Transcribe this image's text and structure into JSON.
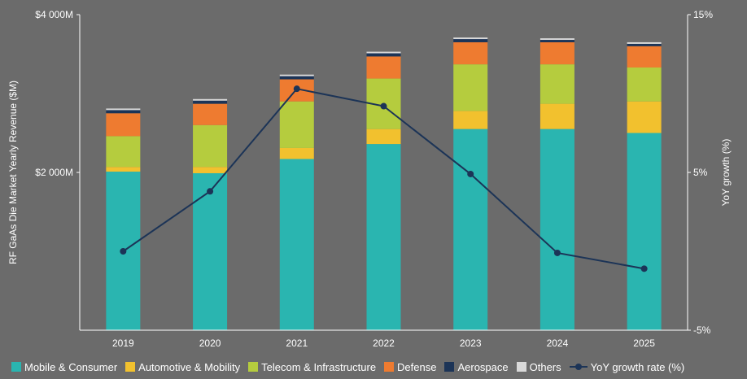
{
  "chart_data": {
    "type": "bar",
    "stacked": true,
    "categories": [
      "2019",
      "2020",
      "2021",
      "2022",
      "2023",
      "2024",
      "2025"
    ],
    "series": [
      {
        "name": "Mobile & Consumer",
        "color": "#2ab5b0",
        "values": [
          2010,
          1990,
          2170,
          2360,
          2550,
          2550,
          2500
        ]
      },
      {
        "name": "Automotive & Mobility",
        "color": "#f2c12e",
        "values": [
          60,
          80,
          140,
          190,
          230,
          320,
          400
        ]
      },
      {
        "name": "Telecom & Infrastructure",
        "color": "#b5cc3e",
        "values": [
          390,
          530,
          590,
          640,
          590,
          500,
          430
        ]
      },
      {
        "name": "Defense",
        "color": "#ee7b30",
        "values": [
          290,
          270,
          280,
          280,
          280,
          280,
          270
        ]
      },
      {
        "name": "Aerospace",
        "color": "#1c3457",
        "values": [
          40,
          40,
          40,
          40,
          40,
          30,
          30
        ]
      },
      {
        "name": "Others",
        "color": "#d9d9d9",
        "values": [
          20,
          20,
          20,
          20,
          20,
          20,
          20
        ]
      }
    ],
    "line_series": {
      "name": "YoY growth rate (%)",
      "color": "#1c3457",
      "values": [
        0.0,
        3.8,
        10.3,
        9.2,
        4.9,
        -0.1,
        -1.1
      ]
    },
    "ylabel": "RF GaAs Die Market Yearly Revenue ($M)",
    "y2label": "YoY growth (%)",
    "ylim": [
      0,
      4000
    ],
    "y2lim": [
      -5,
      15
    ],
    "yticks": [
      {
        "value": 2000,
        "label": "$2 000M"
      },
      {
        "value": 4000,
        "label": "$4 000M"
      }
    ],
    "y2ticks": [
      {
        "value": -5,
        "label": "-5%"
      },
      {
        "value": 5,
        "label": "5%"
      },
      {
        "value": 15,
        "label": "15%"
      }
    ],
    "grid": false,
    "legend": "bottom"
  }
}
